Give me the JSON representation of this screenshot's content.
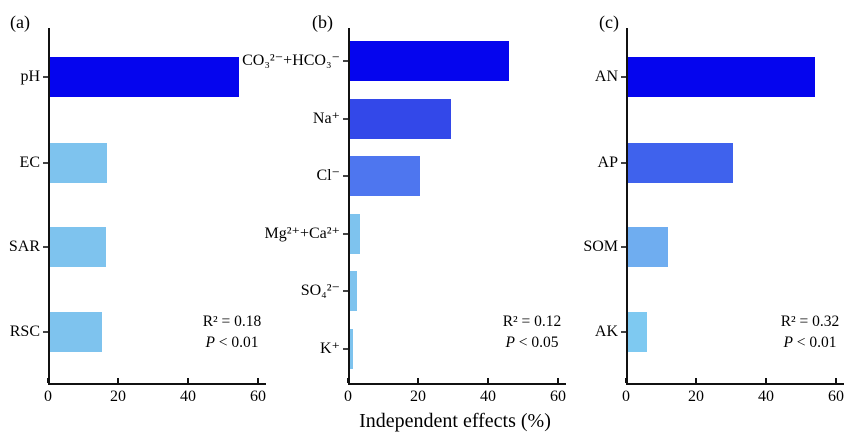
{
  "figure": {
    "xlabel": "Independent effects (%)"
  },
  "chart_data": [
    {
      "type": "bar",
      "orientation": "horizontal",
      "panel_label": "(a)",
      "categories": [
        "pH",
        "EC",
        "SAR",
        "RSC"
      ],
      "values": [
        54,
        16.5,
        16,
        15
      ],
      "bar_colors": [
        "#0505ee",
        "#7ec3ee",
        "#7ec3ee",
        "#7ec3ee"
      ],
      "xlim": [
        0,
        62
      ],
      "x_ticks": [
        0,
        20,
        40,
        60
      ],
      "grid": false,
      "stats": {
        "r2": "R² = 0.18",
        "p_symbol": "P",
        "p_rest": " < 0.01"
      }
    },
    {
      "type": "bar",
      "orientation": "horizontal",
      "panel_label": "(b)",
      "categories": [
        "CO₃²⁻+HCO₃⁻",
        "Na⁺",
        "Cl⁻",
        "Mg²⁺+Ca²⁺",
        "SO₄²⁻",
        "K⁺"
      ],
      "values": [
        45.5,
        29,
        20,
        3,
        2,
        1
      ],
      "bar_colors": [
        "#0505ee",
        "#3348e9",
        "#4e76ef",
        "#7ec3ee",
        "#7ec3ee",
        "#7ec3ee"
      ],
      "xlim": [
        0,
        62
      ],
      "x_ticks": [
        0,
        20,
        40,
        60
      ],
      "grid": false,
      "stats": {
        "r2": "R² = 0.12",
        "p_symbol": "P",
        "p_rest": " < 0.05"
      }
    },
    {
      "type": "bar",
      "orientation": "horizontal",
      "panel_label": "(c)",
      "categories": [
        "AN",
        "AP",
        "SOM",
        "AK"
      ],
      "values": [
        53.5,
        30,
        11.5,
        5.5
      ],
      "bar_colors": [
        "#0505ee",
        "#3f62ed",
        "#6fadf0",
        "#7ec9f1"
      ],
      "xlim": [
        0,
        62
      ],
      "x_ticks": [
        0,
        20,
        40,
        60
      ],
      "grid": false,
      "stats": {
        "r2": "R² = 0.32",
        "p_symbol": "P",
        "p_rest": " < 0.01"
      }
    }
  ]
}
